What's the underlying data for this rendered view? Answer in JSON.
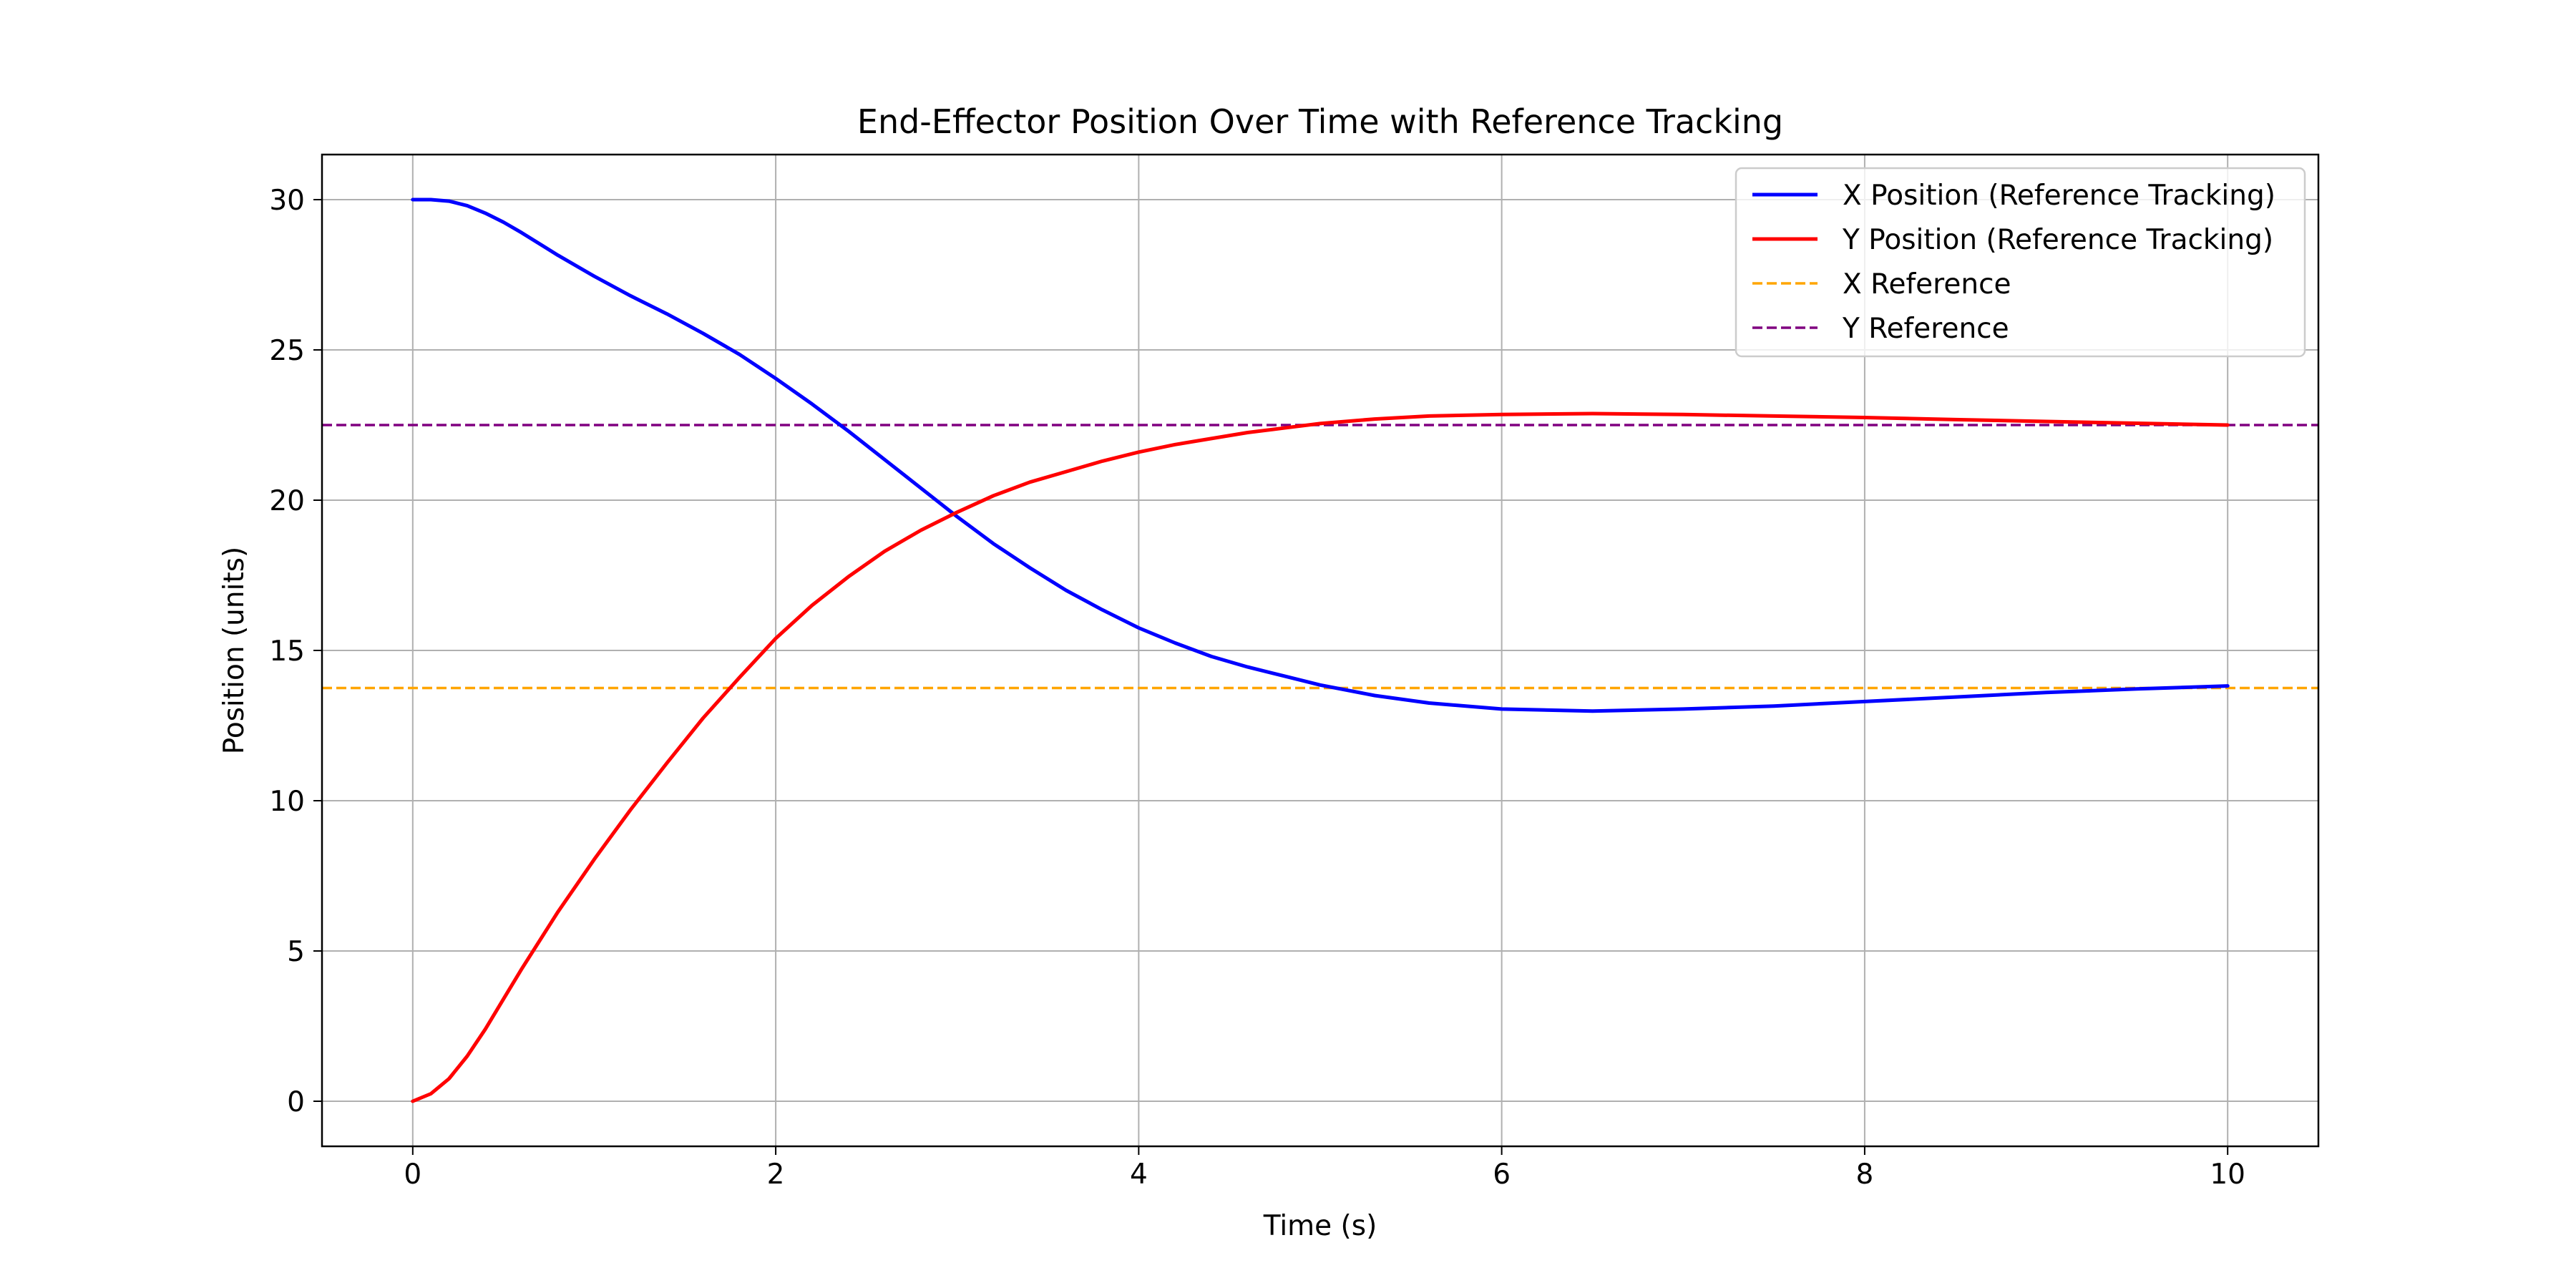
{
  "chart_data": {
    "type": "line",
    "title": "End-Effector Position Over Time with Reference Tracking",
    "xlabel": "Time (s)",
    "ylabel": "Position (units)",
    "xlim": [
      -0.5,
      10.5
    ],
    "ylim": [
      -1.5,
      31.5
    ],
    "xticks": [
      0,
      2,
      4,
      6,
      8,
      10
    ],
    "yticks": [
      0,
      5,
      10,
      15,
      20,
      25,
      30
    ],
    "grid": true,
    "legend_position": "top-right",
    "series": [
      {
        "name": "X Position (Reference Tracking)",
        "color": "#0000ff",
        "style": "solid",
        "x": [
          0,
          0.1,
          0.2,
          0.3,
          0.4,
          0.5,
          0.6,
          0.8,
          1.0,
          1.2,
          1.4,
          1.6,
          1.8,
          2.0,
          2.2,
          2.4,
          2.6,
          2.8,
          3.0,
          3.2,
          3.4,
          3.6,
          3.8,
          4.0,
          4.2,
          4.4,
          4.6,
          4.8,
          5.0,
          5.3,
          5.6,
          6.0,
          6.5,
          7.0,
          7.5,
          8.0,
          8.5,
          9.0,
          9.5,
          10.0
        ],
        "y": [
          30.0,
          30.0,
          29.95,
          29.8,
          29.55,
          29.25,
          28.9,
          28.15,
          27.45,
          26.8,
          26.2,
          25.55,
          24.85,
          24.05,
          23.2,
          22.3,
          21.35,
          20.4,
          19.45,
          18.55,
          17.75,
          17.0,
          16.35,
          15.75,
          15.25,
          14.8,
          14.45,
          14.15,
          13.85,
          13.5,
          13.25,
          13.05,
          12.98,
          13.05,
          13.15,
          13.3,
          13.45,
          13.6,
          13.72,
          13.82
        ]
      },
      {
        "name": "Y Position (Reference Tracking)",
        "color": "#ff0000",
        "style": "solid",
        "x": [
          0,
          0.1,
          0.2,
          0.3,
          0.4,
          0.5,
          0.6,
          0.8,
          1.0,
          1.2,
          1.4,
          1.6,
          1.8,
          2.0,
          2.2,
          2.4,
          2.6,
          2.8,
          3.0,
          3.2,
          3.4,
          3.6,
          3.8,
          4.0,
          4.2,
          4.4,
          4.6,
          4.8,
          5.0,
          5.3,
          5.6,
          6.0,
          6.5,
          7.0,
          7.5,
          8.0,
          8.5,
          9.0,
          9.5,
          10.0
        ],
        "y": [
          0.0,
          0.25,
          0.75,
          1.5,
          2.4,
          3.4,
          4.4,
          6.3,
          8.05,
          9.7,
          11.25,
          12.75,
          14.1,
          15.4,
          16.5,
          17.45,
          18.3,
          19.0,
          19.6,
          20.15,
          20.6,
          20.95,
          21.3,
          21.6,
          21.85,
          22.05,
          22.25,
          22.4,
          22.55,
          22.7,
          22.8,
          22.85,
          22.88,
          22.85,
          22.8,
          22.75,
          22.68,
          22.62,
          22.56,
          22.5
        ]
      },
      {
        "name": "X Reference",
        "color": "#ffa500",
        "style": "dashed",
        "value": 13.75
      },
      {
        "name": "Y Reference",
        "color": "#800080",
        "style": "dashed",
        "value": 22.5
      }
    ]
  }
}
